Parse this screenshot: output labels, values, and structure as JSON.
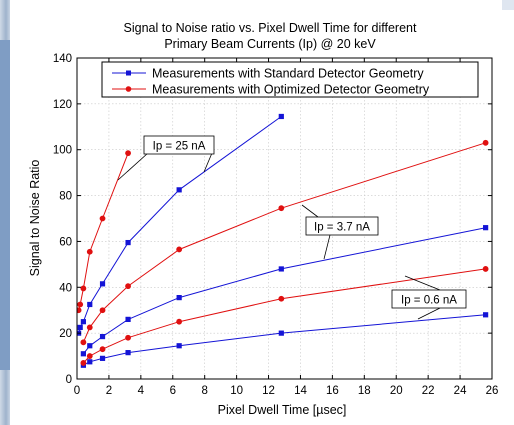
{
  "chart_data": {
    "type": "line",
    "title": "Signal to Noise ratio vs. Pixel Dwell Time for different",
    "subtitle": "Primary Beam Currents (Ip) @ 20 keV",
    "xlabel": "Pixel Dwell Time [µsec]",
    "ylabel": "Signal to Noise Ratio",
    "xlim": [
      0,
      26
    ],
    "ylim": [
      0,
      140
    ],
    "xticks": [
      0,
      2,
      4,
      6,
      8,
      10,
      12,
      14,
      16,
      18,
      20,
      22,
      24,
      26
    ],
    "yticks": [
      0,
      20,
      40,
      60,
      80,
      100,
      120,
      140
    ],
    "grid": true,
    "legend": {
      "position": "top",
      "entries": [
        {
          "label": "Measurements with Standard Detector Geometry",
          "color": "#1414d6",
          "marker": "square"
        },
        {
          "label": "Measurements with Optimized Detector Geometry",
          "color": "#e01010",
          "marker": "circle"
        }
      ]
    },
    "annotations": [
      {
        "text": "Ip = 25 nA"
      },
      {
        "text": "Ip = 3.7 nA"
      },
      {
        "text": "Ip = 0.6 nA"
      }
    ],
    "series": [
      {
        "group": "standard",
        "current": "25 nA",
        "color": "#1414d6",
        "marker": "square",
        "x": [
          0.1,
          0.2,
          0.4,
          0.8,
          1.6,
          3.2,
          6.4,
          12.8
        ],
        "y": [
          20,
          22.5,
          25,
          32.5,
          41.5,
          59.5,
          82.5,
          114.5
        ]
      },
      {
        "group": "optimized",
        "current": "25 nA",
        "color": "#e01010",
        "marker": "circle",
        "x": [
          0.1,
          0.2,
          0.4,
          0.8,
          1.6,
          3.2
        ],
        "y": [
          30,
          32.5,
          39.5,
          55.5,
          70,
          98.5
        ]
      },
      {
        "group": "standard",
        "current": "3.7 nA",
        "color": "#1414d6",
        "marker": "square",
        "x": [
          0.4,
          0.8,
          1.6,
          3.2,
          6.4,
          12.8,
          25.6
        ],
        "y": [
          11,
          14.5,
          18.5,
          26,
          35.5,
          48,
          66
        ]
      },
      {
        "group": "optimized",
        "current": "3.7 nA",
        "color": "#e01010",
        "marker": "circle",
        "x": [
          0.4,
          0.8,
          1.6,
          3.2,
          6.4,
          12.8,
          25.6
        ],
        "y": [
          16,
          22.5,
          30,
          40.5,
          56.5,
          74.5,
          103
        ]
      },
      {
        "group": "standard",
        "current": "0.6 nA",
        "color": "#1414d6",
        "marker": "square",
        "x": [
          0.4,
          0.8,
          1.6,
          3.2,
          6.4,
          12.8,
          25.6
        ],
        "y": [
          6,
          7.5,
          9,
          11.5,
          14.5,
          20,
          28
        ]
      },
      {
        "group": "optimized",
        "current": "0.6 nA",
        "color": "#e01010",
        "marker": "circle",
        "x": [
          0.4,
          0.8,
          1.6,
          3.2,
          6.4,
          12.8,
          25.6
        ],
        "y": [
          7,
          10,
          13,
          18,
          25,
          35,
          48
        ]
      }
    ]
  }
}
